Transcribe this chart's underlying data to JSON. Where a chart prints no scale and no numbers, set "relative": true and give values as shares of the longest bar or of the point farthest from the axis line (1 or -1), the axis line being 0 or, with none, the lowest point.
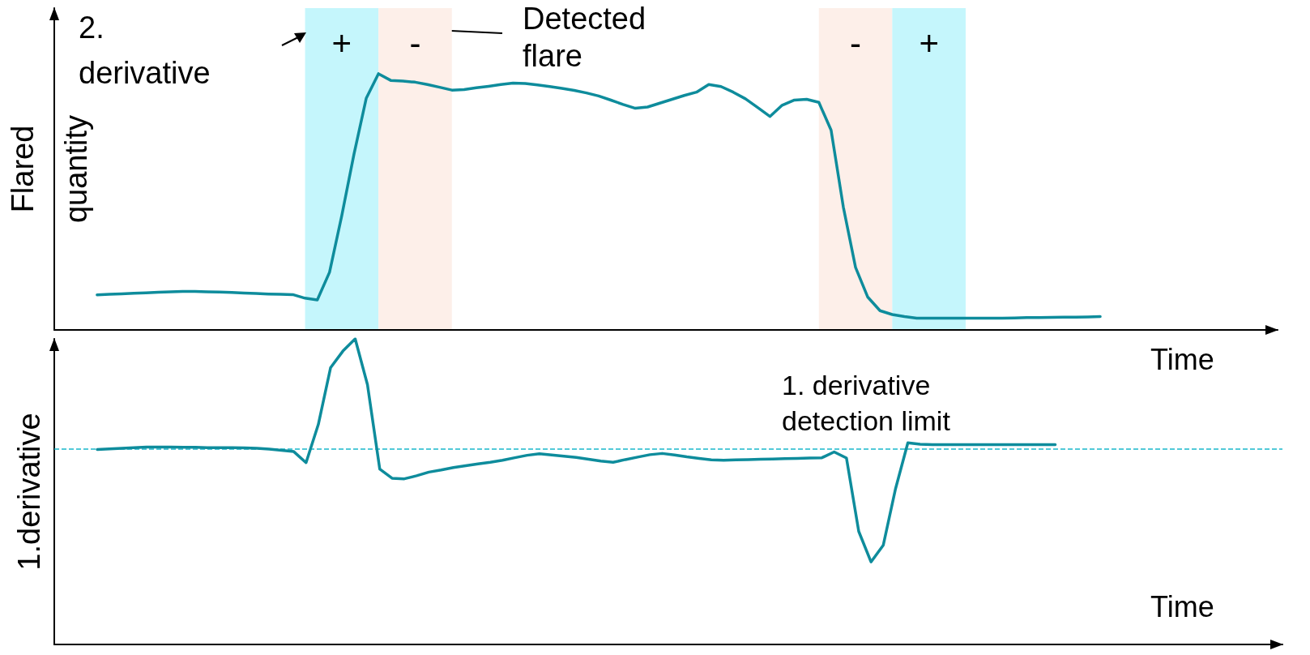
{
  "chart_data": [
    {
      "type": "line",
      "xlabel": "Time",
      "ylabel": "Flared quantity",
      "relative": true,
      "marker": "none",
      "line_style": "solid",
      "categories": [
        null,
        null,
        null,
        null,
        null,
        null,
        null,
        null,
        null,
        null,
        null,
        null,
        null,
        null,
        null,
        null,
        null,
        null,
        null,
        null,
        null,
        null,
        null,
        null,
        null,
        null,
        null,
        null,
        null,
        null,
        null,
        null,
        null,
        null,
        null,
        null,
        null,
        null,
        null,
        null,
        null,
        null,
        null,
        null,
        null,
        null,
        null,
        null,
        null,
        null,
        null,
        null,
        null,
        null,
        null,
        null,
        null,
        null,
        null,
        null,
        null,
        null,
        null,
        null,
        null,
        null,
        null,
        null,
        null,
        null,
        null,
        null,
        null,
        null,
        null,
        null,
        null,
        null,
        null,
        null,
        null,
        null,
        null,
        null,
        null,
        null,
        null,
        null,
        null,
        null,
        null,
        null,
        null,
        null,
        null,
        null,
        null,
        null,
        null,
        null
      ],
      "series": [
        {
          "color": "#0e8c9c",
          "values": [
            null,
            null,
            null,
            0.137,
            0.139,
            0.141,
            0.143,
            0.145,
            0.147,
            0.149,
            0.15,
            0.15,
            0.149,
            0.148,
            0.146,
            0.144,
            0.142,
            0.14,
            0.139,
            0.138,
            0.124,
            0.117,
            0.225,
            0.446,
            0.686,
            0.904,
            1.0,
            0.974,
            0.971,
            0.967,
            0.958,
            0.947,
            0.936,
            0.938,
            0.945,
            0.951,
            0.958,
            0.963,
            0.962,
            0.956,
            0.95,
            0.943,
            0.935,
            0.925,
            0.913,
            0.897,
            0.88,
            0.865,
            0.87,
            0.885,
            0.9,
            0.915,
            0.928,
            0.958,
            0.95,
            0.928,
            0.902,
            0.868,
            0.833,
            0.877,
            0.897,
            0.9,
            0.888,
            0.78,
            0.48,
            0.244,
            0.128,
            0.075,
            0.06,
            0.052,
            0.046,
            0.046,
            0.046,
            0.046,
            0.046,
            0.046,
            0.046,
            0.046,
            0.047,
            0.048,
            0.048,
            0.049,
            0.05,
            0.05,
            0.051,
            0.052,
            null,
            null,
            null,
            null,
            null,
            null,
            null,
            null,
            null,
            null,
            null,
            null,
            null,
            null
          ]
        }
      ],
      "annotations": [
        "2. derivative",
        "Detected flare",
        "+",
        "-",
        "-",
        "+"
      ]
    },
    {
      "type": "line",
      "xlabel": "Time",
      "ylabel": "1.derivative",
      "relative": true,
      "marker": "none",
      "line_style": "solid",
      "categories": [
        null,
        null,
        null,
        null,
        null,
        null,
        null,
        null,
        null,
        null,
        null,
        null,
        null,
        null,
        null,
        null,
        null,
        null,
        null,
        null,
        null,
        null,
        null,
        null,
        null,
        null,
        null,
        null,
        null,
        null,
        null,
        null,
        null,
        null,
        null,
        null,
        null,
        null,
        null,
        null,
        null,
        null,
        null,
        null,
        null,
        null,
        null,
        null,
        null,
        null,
        null,
        null,
        null,
        null,
        null,
        null,
        null,
        null,
        null,
        null,
        null,
        null,
        null,
        null,
        null,
        null,
        null,
        null,
        null,
        null,
        null,
        null,
        null,
        null,
        null,
        null,
        null,
        null,
        null,
        null,
        null,
        null,
        null,
        null,
        null,
        null,
        null,
        null,
        null,
        null,
        null,
        null,
        null,
        null,
        null,
        null,
        null,
        null,
        null,
        null
      ],
      "series": [
        {
          "color": "#0e8c9c",
          "values": [
            null,
            null,
            null,
            0.638,
            0.64,
            0.642,
            0.644,
            0.646,
            0.646,
            0.646,
            0.645,
            0.645,
            0.644,
            0.644,
            0.644,
            0.643,
            0.642,
            0.639,
            0.635,
            0.631,
            0.595,
            0.72,
            0.906,
            0.96,
            1.0,
            0.85,
            0.574,
            0.544,
            0.542,
            0.552,
            0.564,
            0.571,
            0.579,
            0.585,
            0.591,
            0.596,
            0.603,
            0.611,
            0.619,
            0.624,
            0.62,
            0.616,
            0.612,
            0.606,
            0.6,
            0.596,
            0.605,
            0.613,
            0.621,
            0.625,
            0.62,
            0.614,
            0.609,
            0.604,
            0.603,
            0.604,
            0.605,
            0.606,
            0.607,
            0.608,
            0.609,
            0.61,
            0.611,
            0.63,
            0.61,
            0.37,
            0.27,
            0.325,
            0.51,
            0.66,
            0.655,
            0.654,
            0.654,
            0.654,
            0.654,
            0.654,
            0.654,
            0.654,
            0.654,
            0.654,
            0.654,
            0.654,
            null,
            null,
            null,
            null,
            null,
            null,
            null,
            null,
            null,
            null,
            null,
            null,
            null,
            null,
            null,
            null,
            null,
            null
          ]
        }
      ],
      "ref_lines": [
        {
          "axis": "y",
          "value": 0.638,
          "label": "1. derivative detection limit",
          "color": "#1ab8cc",
          "line_style": "dashed"
        }
      ]
    }
  ]
}
